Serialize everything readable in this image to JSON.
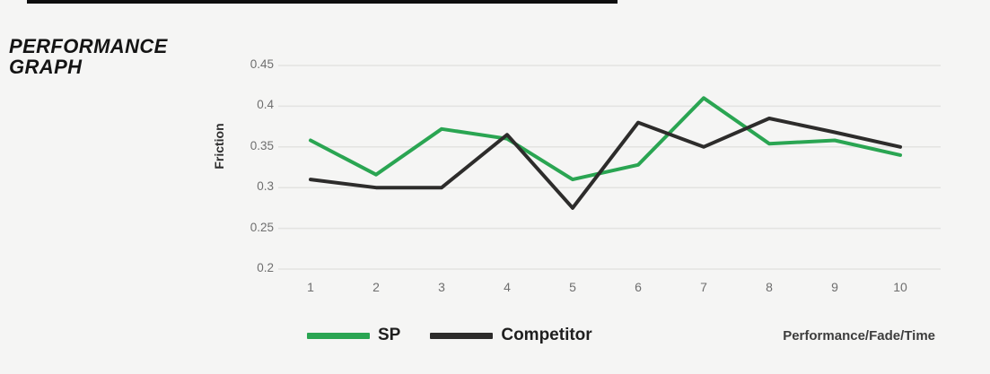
{
  "header": {
    "title_line1": "PERFORMANCE",
    "title_line2": "GRAPH"
  },
  "chart_data": {
    "type": "line",
    "categories": [
      "1",
      "2",
      "3",
      "4",
      "5",
      "6",
      "7",
      "8",
      "9",
      "10"
    ],
    "series": [
      {
        "name": "SP",
        "color": "#2aa552",
        "values": [
          0.358,
          0.316,
          0.372,
          0.36,
          0.31,
          0.328,
          0.41,
          0.354,
          0.358,
          0.34
        ]
      },
      {
        "name": "Competitor",
        "color": "#2d2c2b",
        "values": [
          0.31,
          0.3,
          0.3,
          0.365,
          0.275,
          0.38,
          0.35,
          0.385,
          0.368,
          0.35
        ]
      }
    ],
    "title": "PERFORMANCE GRAPH",
    "xlabel": "Performance/Fade/Time",
    "ylabel": "Friction",
    "ylim": [
      0.2,
      0.45
    ],
    "yticks": [
      0.45,
      0.4,
      0.35,
      0.3,
      0.25,
      0.2
    ],
    "grid": true,
    "legend_position": "bottom"
  },
  "footer": {
    "axis_note": "Performance/Fade/Time"
  },
  "colors": {
    "background": "#f5f5f4",
    "accent_bar": "#0e0e0e",
    "gridline": "#e3e3e1",
    "tick_text": "#6e6e6e",
    "sp_green": "#2aa552",
    "competitor_black": "#2d2c2b"
  }
}
